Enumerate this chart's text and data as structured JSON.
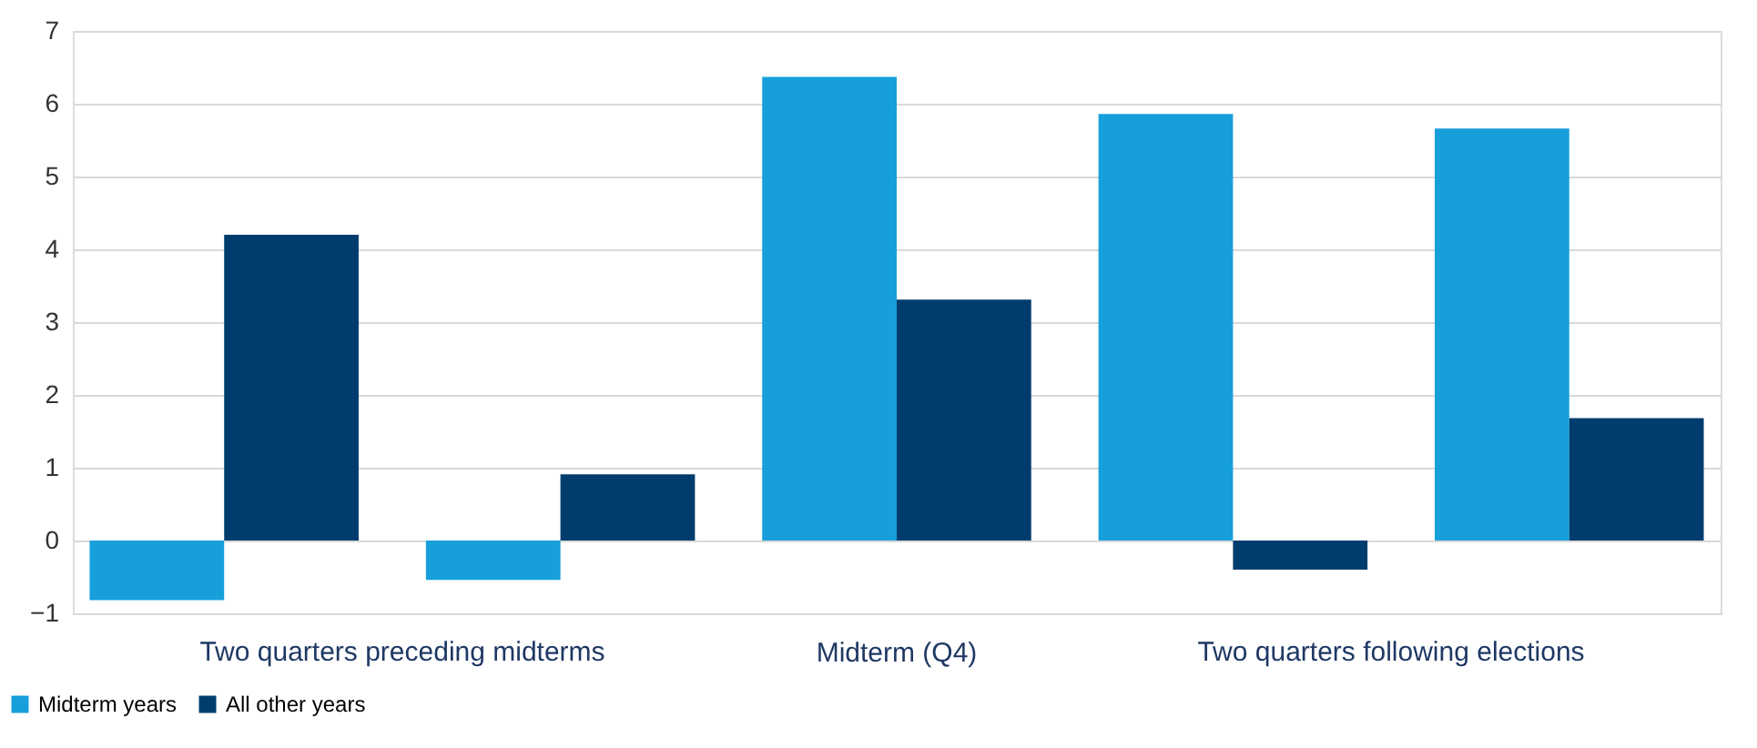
{
  "chart_data": {
    "type": "bar",
    "categories": [
      null,
      null,
      "Midterm (Q4)",
      null,
      null
    ],
    "series": [
      {
        "name": "Midterm years",
        "color": "#169fdb",
        "values": [
          -0.82,
          -0.54,
          6.37,
          5.86,
          5.66
        ]
      },
      {
        "name": "All other years",
        "color": "#003d6e",
        "values": [
          4.2,
          0.91,
          3.31,
          -0.4,
          1.68
        ]
      }
    ],
    "annotations": [
      "Two quarters preceding midterms",
      "Two quarters following elections"
    ],
    "ylim": [
      -1,
      7
    ],
    "yticks": [
      -1,
      0,
      1,
      2,
      3,
      4,
      5,
      6,
      7
    ],
    "grid": "y",
    "legend": "bottom left"
  }
}
